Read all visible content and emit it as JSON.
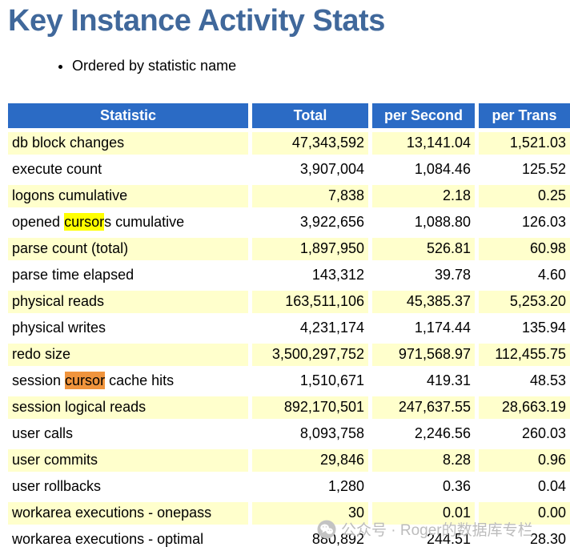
{
  "page": {
    "title": "Key Instance Activity Stats",
    "bullet_note": "Ordered by statistic name"
  },
  "table": {
    "headers": [
      "Statistic",
      "Total",
      "per Second",
      "per Trans"
    ],
    "rows": [
      {
        "statistic": "db block changes",
        "total": "47,343,592",
        "per_second": "13,141.04",
        "per_trans": "1,521.03"
      },
      {
        "statistic": "execute count",
        "total": "3,907,004",
        "per_second": "1,084.46",
        "per_trans": "125.52"
      },
      {
        "statistic": "logons cumulative",
        "total": "7,838",
        "per_second": "2.18",
        "per_trans": "0.25"
      },
      {
        "statistic": "opened cursors cumulative",
        "total": "3,922,656",
        "per_second": "1,088.80",
        "per_trans": "126.03",
        "highlight": {
          "text": "cursor",
          "style": "inactive"
        }
      },
      {
        "statistic": "parse count (total)",
        "total": "1,897,950",
        "per_second": "526.81",
        "per_trans": "60.98"
      },
      {
        "statistic": "parse time elapsed",
        "total": "143,312",
        "per_second": "39.78",
        "per_trans": "4.60"
      },
      {
        "statistic": "physical reads",
        "total": "163,511,106",
        "per_second": "45,385.37",
        "per_trans": "5,253.20"
      },
      {
        "statistic": "physical writes",
        "total": "4,231,174",
        "per_second": "1,174.44",
        "per_trans": "135.94"
      },
      {
        "statistic": "redo size",
        "total": "3,500,297,752",
        "per_second": "971,568.97",
        "per_trans": "112,455.75"
      },
      {
        "statistic": "session cursor cache hits",
        "total": "1,510,671",
        "per_second": "419.31",
        "per_trans": "48.53",
        "highlight": {
          "text": "cursor",
          "style": "active"
        }
      },
      {
        "statistic": "session logical reads",
        "total": "892,170,501",
        "per_second": "247,637.55",
        "per_trans": "28,663.19"
      },
      {
        "statistic": "user calls",
        "total": "8,093,758",
        "per_second": "2,246.56",
        "per_trans": "260.03"
      },
      {
        "statistic": "user commits",
        "total": "29,846",
        "per_second": "8.28",
        "per_trans": "0.96"
      },
      {
        "statistic": "user rollbacks",
        "total": "1,280",
        "per_second": "0.36",
        "per_trans": "0.04"
      },
      {
        "statistic": "workarea executions - onepass",
        "total": "30",
        "per_second": "0.01",
        "per_trans": "0.00"
      },
      {
        "statistic": "workarea executions - optimal",
        "total": "880,892",
        "per_second": "244.51",
        "per_trans": "28.30"
      }
    ]
  },
  "watermark": {
    "icon": "wechat-icon",
    "text": "公众号 · Roger的数据库专栏"
  },
  "colors": {
    "title": "#40689b",
    "header_bg": "#2b6bc5",
    "header_text": "#ffffff",
    "row_alt_bg": "#ffffcc",
    "highlight_inactive": "#ffff00",
    "highlight_active": "#f0943d",
    "watermark": "#bcbcbc"
  }
}
